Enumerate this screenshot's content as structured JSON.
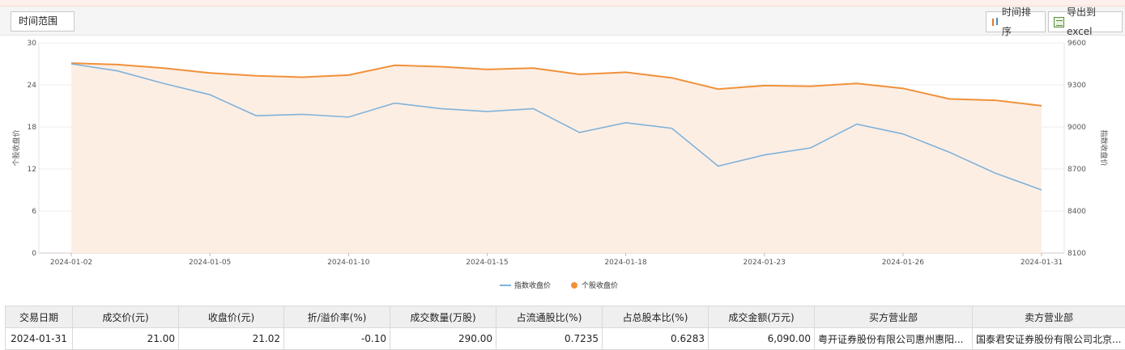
{
  "toolbar": {
    "time_range_label": "时间范围",
    "sort_label": "时间排序",
    "export_label": "导出到excel",
    "sort_icon": "sort-icon",
    "export_icon": "excel-icon"
  },
  "colors": {
    "stock": "#f0913a",
    "stock_fill": "#fdeee4",
    "index": "#7fb2d9"
  },
  "chart_data": {
    "type": "line",
    "x": [
      "2024-01-02",
      "2024-01-03",
      "2024-01-04",
      "2024-01-05",
      "2024-01-08",
      "2024-01-09",
      "2024-01-10",
      "2024-01-11",
      "2024-01-12",
      "2024-01-15",
      "2024-01-16",
      "2024-01-17",
      "2024-01-18",
      "2024-01-19",
      "2024-01-22",
      "2024-01-23",
      "2024-01-24",
      "2024-01-25",
      "2024-01-26",
      "2024-01-29",
      "2024-01-30",
      "2024-01-31"
    ],
    "x_ticks": [
      "2024-01-02",
      "2024-01-05",
      "2024-01-10",
      "2024-01-15",
      "2024-01-18",
      "2024-01-23",
      "2024-01-26",
      "2024-01-31"
    ],
    "series": [
      {
        "name": "指数收盘价",
        "axis": "right",
        "values": [
          9450,
          9400,
          9310,
          9230,
          9080,
          9090,
          9070,
          9170,
          9130,
          9110,
          9130,
          8960,
          9030,
          8990,
          8720,
          8800,
          8850,
          9020,
          8950,
          8820,
          8670,
          8550
        ]
      },
      {
        "name": "个股收盘价",
        "axis": "left",
        "area": true,
        "values": [
          27.1,
          26.9,
          26.4,
          25.7,
          25.3,
          25.1,
          25.4,
          26.8,
          26.6,
          26.2,
          26.4,
          25.5,
          25.8,
          25.0,
          23.4,
          23.9,
          23.8,
          24.2,
          23.5,
          22.0,
          21.8,
          21.02
        ]
      }
    ],
    "ylabel": "个股收盘价",
    "y2label": "指数收盘价",
    "ylim": [
      0,
      30
    ],
    "yticks": [
      0,
      6,
      12,
      18,
      24,
      30
    ],
    "y2lim": [
      8100,
      9600
    ],
    "y2ticks": [
      8100,
      8400,
      8700,
      9000,
      9300,
      9600
    ],
    "grid": true,
    "legend": "bottom-center"
  },
  "table": {
    "headers": [
      "交易日期",
      "成交价(元)",
      "收盘价(元)",
      "折/溢价率(%)",
      "成交数量(万股)",
      "占流通股比(%)",
      "占总股本比(%)",
      "成交金额(万元)",
      "买方营业部",
      "卖方营业部"
    ],
    "rows": [
      [
        "2024-01-31",
        "21.00",
        "21.02",
        "-0.10",
        "290.00",
        "0.7235",
        "0.6283",
        "6,090.00",
        "粤开证券股份有限公司惠州惠阳...",
        "国泰君安证券股份有限公司北京..."
      ]
    ]
  }
}
